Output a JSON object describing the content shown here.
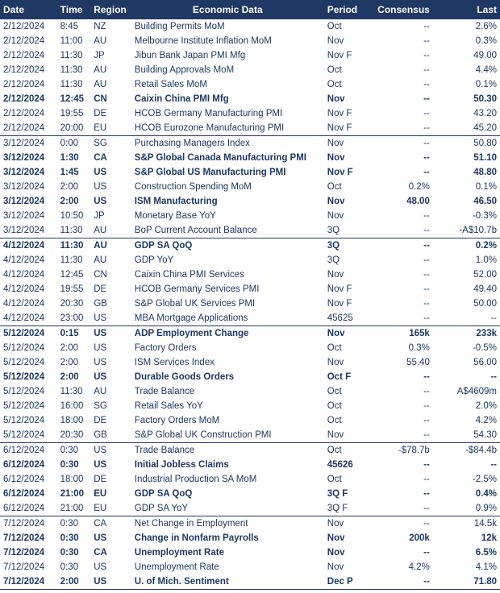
{
  "header_bg": "#1f3864",
  "header_fg": "#ffffff",
  "text_color": "#1f3864",
  "columns": {
    "date": "Date",
    "time": "Time",
    "region": "Region",
    "econ": "Economic Data",
    "period": "Period",
    "consensus": "Consensus",
    "last": "Last"
  },
  "rows": [
    {
      "date": "2/12/2024",
      "time": "8:45",
      "region": "NZ",
      "econ": "Building Permits MoM",
      "period": "Oct",
      "consensus": "--",
      "last": "2.6%",
      "bold": false,
      "rule": false
    },
    {
      "date": "2/12/2024",
      "time": "11:00",
      "region": "AU",
      "econ": "Melbourne Institute Inflation MoM",
      "period": "Nov",
      "consensus": "--",
      "last": "0.3%",
      "bold": false,
      "rule": false
    },
    {
      "date": "2/12/2024",
      "time": "11:30",
      "region": "JP",
      "econ": "Jibun Bank Japan PMI Mfg",
      "period": "Nov F",
      "consensus": "--",
      "last": "49.00",
      "bold": false,
      "rule": false
    },
    {
      "date": "2/12/2024",
      "time": "11:30",
      "region": "AU",
      "econ": "Building Approvals MoM",
      "period": "Oct",
      "consensus": "--",
      "last": "4.4%",
      "bold": false,
      "rule": false
    },
    {
      "date": "2/12/2024",
      "time": "11:30",
      "region": "AU",
      "econ": "Retail Sales MoM",
      "period": "Oct",
      "consensus": "--",
      "last": "0.1%",
      "bold": false,
      "rule": false
    },
    {
      "date": "2/12/2024",
      "time": "12:45",
      "region": "CN",
      "econ": "Caixin China PMI Mfg",
      "period": "Nov",
      "consensus": "--",
      "last": "50.30",
      "bold": true,
      "rule": false
    },
    {
      "date": "2/12/2024",
      "time": "19:55",
      "region": "DE",
      "econ": "HCOB Germany Manufacturing PMI",
      "period": "Nov F",
      "consensus": "--",
      "last": "43.20",
      "bold": false,
      "rule": false
    },
    {
      "date": "2/12/2024",
      "time": "20:00",
      "region": "EU",
      "econ": "HCOB Eurozone Manufacturing PMI",
      "period": "Nov F",
      "consensus": "--",
      "last": "45.20",
      "bold": false,
      "rule": true
    },
    {
      "date": "3/12/2024",
      "time": "0:00",
      "region": "SG",
      "econ": "Purchasing Managers Index",
      "period": "Nov",
      "consensus": "--",
      "last": "50.80",
      "bold": false,
      "rule": false
    },
    {
      "date": "3/12/2024",
      "time": "1:30",
      "region": "CA",
      "econ": "S&P Global Canada Manufacturing PMI",
      "period": "Nov",
      "consensus": "--",
      "last": "51.10",
      "bold": true,
      "rule": false
    },
    {
      "date": "3/12/2024",
      "time": "1:45",
      "region": "US",
      "econ": "S&P Global US Manufacturing PMI",
      "period": "Nov F",
      "consensus": "--",
      "last": "48.80",
      "bold": true,
      "rule": false
    },
    {
      "date": "3/12/2024",
      "time": "2:00",
      "region": "US",
      "econ": "Construction Spending MoM",
      "period": "Oct",
      "consensus": "0.2%",
      "last": "0.1%",
      "bold": false,
      "rule": false
    },
    {
      "date": "3/12/2024",
      "time": "2:00",
      "region": "US",
      "econ": "ISM Manufacturing",
      "period": "Nov",
      "consensus": "48.00",
      "last": "46.50",
      "bold": true,
      "rule": false
    },
    {
      "date": "3/12/2024",
      "time": "10:50",
      "region": "JP",
      "econ": "Monetary Base YoY",
      "period": "Nov",
      "consensus": "--",
      "last": "-0.3%",
      "bold": false,
      "rule": false
    },
    {
      "date": "3/12/2024",
      "time": "11:30",
      "region": "AU",
      "econ": "BoP Current Account Balance",
      "period": "3Q",
      "consensus": "--",
      "last": "-A$10.7b",
      "bold": false,
      "rule": true
    },
    {
      "date": "4/12/2024",
      "time": "11:30",
      "region": "AU",
      "econ": "GDP SA QoQ",
      "period": "3Q",
      "consensus": "--",
      "last": "0.2%",
      "bold": true,
      "rule": false
    },
    {
      "date": "4/12/2024",
      "time": "11:30",
      "region": "AU",
      "econ": "GDP YoY",
      "period": "3Q",
      "consensus": "--",
      "last": "1.0%",
      "bold": false,
      "rule": false
    },
    {
      "date": "4/12/2024",
      "time": "12:45",
      "region": "CN",
      "econ": "Caixin China PMI Services",
      "period": "Nov",
      "consensus": "--",
      "last": "52.00",
      "bold": false,
      "rule": false
    },
    {
      "date": "4/12/2024",
      "time": "19:55",
      "region": "DE",
      "econ": "HCOB Germany Services PMI",
      "period": "Nov F",
      "consensus": "--",
      "last": "49.40",
      "bold": false,
      "rule": false
    },
    {
      "date": "4/12/2024",
      "time": "20:30",
      "region": "GB",
      "econ": "S&P Global UK Services PMI",
      "period": "Nov F",
      "consensus": "--",
      "last": "50.00",
      "bold": false,
      "rule": false
    },
    {
      "date": "4/12/2024",
      "time": "23:00",
      "region": "US",
      "econ": "MBA Mortgage Applications",
      "period": "45625",
      "consensus": "--",
      "last": "--",
      "bold": false,
      "rule": true
    },
    {
      "date": "5/12/2024",
      "time": "0:15",
      "region": "US",
      "econ": "ADP Employment Change",
      "period": "Nov",
      "consensus": "165k",
      "last": "233k",
      "bold": true,
      "rule": false
    },
    {
      "date": "5/12/2024",
      "time": "2:00",
      "region": "US",
      "econ": "Factory Orders",
      "period": "Oct",
      "consensus": "0.3%",
      "last": "-0.5%",
      "bold": false,
      "rule": false
    },
    {
      "date": "5/12/2024",
      "time": "2:00",
      "region": "US",
      "econ": "ISM Services Index",
      "period": "Nov",
      "consensus": "55.40",
      "last": "56.00",
      "bold": false,
      "rule": false
    },
    {
      "date": "5/12/2024",
      "time": "2:00",
      "region": "US",
      "econ": "Durable Goods Orders",
      "period": "Oct F",
      "consensus": "--",
      "last": "--",
      "bold": true,
      "rule": false
    },
    {
      "date": "5/12/2024",
      "time": "11:30",
      "region": "AU",
      "econ": "Trade Balance",
      "period": "Oct",
      "consensus": "--",
      "last": "A$4609m",
      "bold": false,
      "rule": false
    },
    {
      "date": "5/12/2024",
      "time": "16:00",
      "region": "SG",
      "econ": "Retail Sales YoY",
      "period": "Oct",
      "consensus": "--",
      "last": "2.0%",
      "bold": false,
      "rule": false
    },
    {
      "date": "5/12/2024",
      "time": "18:00",
      "region": "DE",
      "econ": "Factory Orders MoM",
      "period": "Oct",
      "consensus": "--",
      "last": "4.2%",
      "bold": false,
      "rule": false
    },
    {
      "date": "5/12/2024",
      "time": "20:30",
      "region": "GB",
      "econ": "S&P Global UK Construction PMI",
      "period": "Nov",
      "consensus": "--",
      "last": "54.30",
      "bold": false,
      "rule": true
    },
    {
      "date": "6/12/2024",
      "time": "0:30",
      "region": "US",
      "econ": "Trade Balance",
      "period": "Oct",
      "consensus": "-$78.7b",
      "last": "-$84.4b",
      "bold": false,
      "rule": false
    },
    {
      "date": "6/12/2024",
      "time": "0:30",
      "region": "US",
      "econ": "Initial Jobless Claims",
      "period": "45626",
      "consensus": "--",
      "last": "--",
      "bold": true,
      "rule": false
    },
    {
      "date": "6/12/2024",
      "time": "18:00",
      "region": "DE",
      "econ": "Industrial Production SA MoM",
      "period": "Oct",
      "consensus": "--",
      "last": "-2.5%",
      "bold": false,
      "rule": false
    },
    {
      "date": "6/12/2024",
      "time": "21:00",
      "region": "EU",
      "econ": "GDP SA QoQ",
      "period": "3Q F",
      "consensus": "--",
      "last": "0.4%",
      "bold": true,
      "rule": false
    },
    {
      "date": "6/12/2024",
      "time": "21:00",
      "region": "EU",
      "econ": "GDP SA YoY",
      "period": "3Q F",
      "consensus": "--",
      "last": "0.9%",
      "bold": false,
      "rule": true
    },
    {
      "date": "7/12/2024",
      "time": "0:30",
      "region": "CA",
      "econ": "Net Change in Employment",
      "period": "Nov",
      "consensus": "--",
      "last": "14.5k",
      "bold": false,
      "rule": false
    },
    {
      "date": "7/12/2024",
      "time": "0:30",
      "region": "US",
      "econ": "Change in Nonfarm Payrolls",
      "period": "Nov",
      "consensus": "200k",
      "last": "12k",
      "bold": true,
      "rule": false
    },
    {
      "date": "7/12/2024",
      "time": "0:30",
      "region": "CA",
      "econ": "Unemployment Rate",
      "period": "Nov",
      "consensus": "--",
      "last": "6.5%",
      "bold": true,
      "rule": false
    },
    {
      "date": "7/12/2024",
      "time": "0:30",
      "region": "US",
      "econ": "Unemployment Rate",
      "period": "Nov",
      "consensus": "4.2%",
      "last": "4.1%",
      "bold": false,
      "rule": false
    },
    {
      "date": "7/12/2024",
      "time": "2:00",
      "region": "US",
      "econ": "U. of Mich. Sentiment",
      "period": "Dec P",
      "consensus": "--",
      "last": "71.80",
      "bold": true,
      "rule": true
    }
  ]
}
